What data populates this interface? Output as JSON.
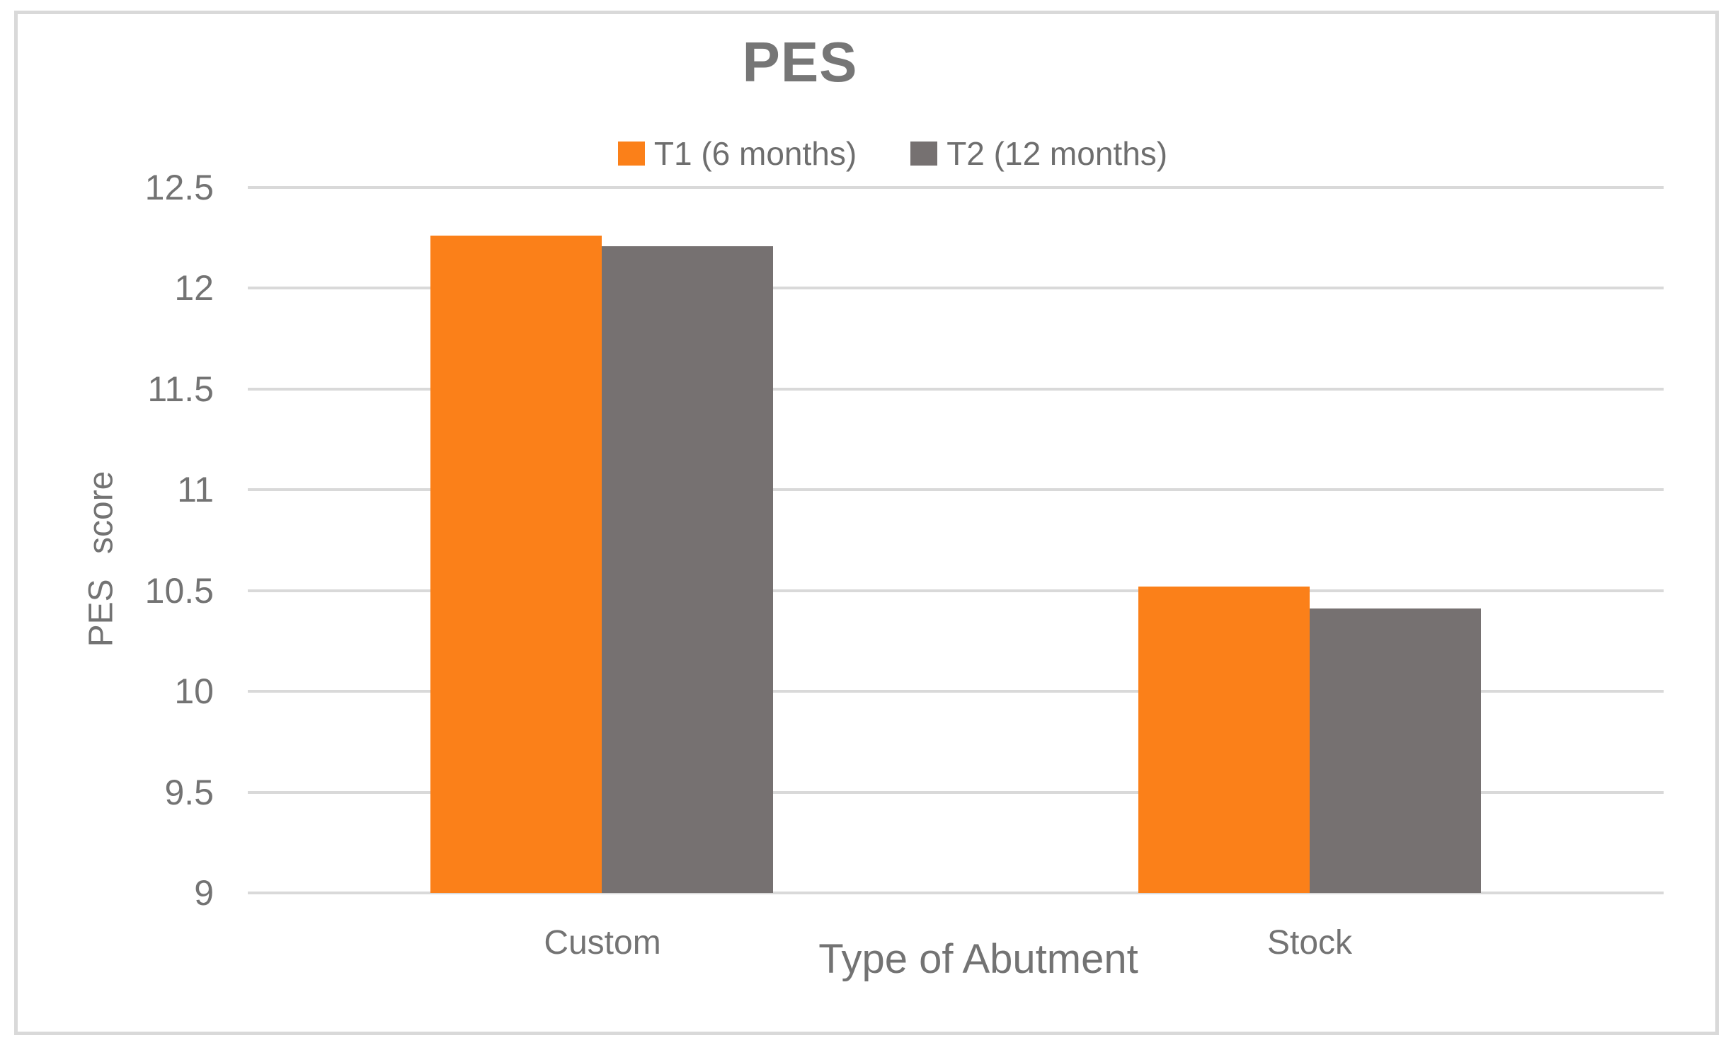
{
  "chart_data": {
    "type": "bar",
    "title": "PES",
    "categories": [
      "Custom",
      "Stock"
    ],
    "series": [
      {
        "name": "T1 (6 months)",
        "color": "#FB8019",
        "values": [
          12.26,
          10.52
        ]
      },
      {
        "name": "T2 (12 months)",
        "color": "#767171",
        "values": [
          12.21,
          10.41
        ]
      }
    ],
    "xlabel": "Type of Abutment",
    "ylabel": "PES score",
    "ylim": [
      9,
      12.5
    ],
    "yticks": [
      9,
      9.5,
      10,
      10.5,
      11,
      11.5,
      12,
      12.5
    ],
    "grid": "horizontal",
    "legend_position": "top-center",
    "colors": {
      "gridline": "#D9D9D9",
      "frame_border": "#D9D9D9",
      "axis_text": "#737373",
      "title_text": "#767676"
    }
  }
}
